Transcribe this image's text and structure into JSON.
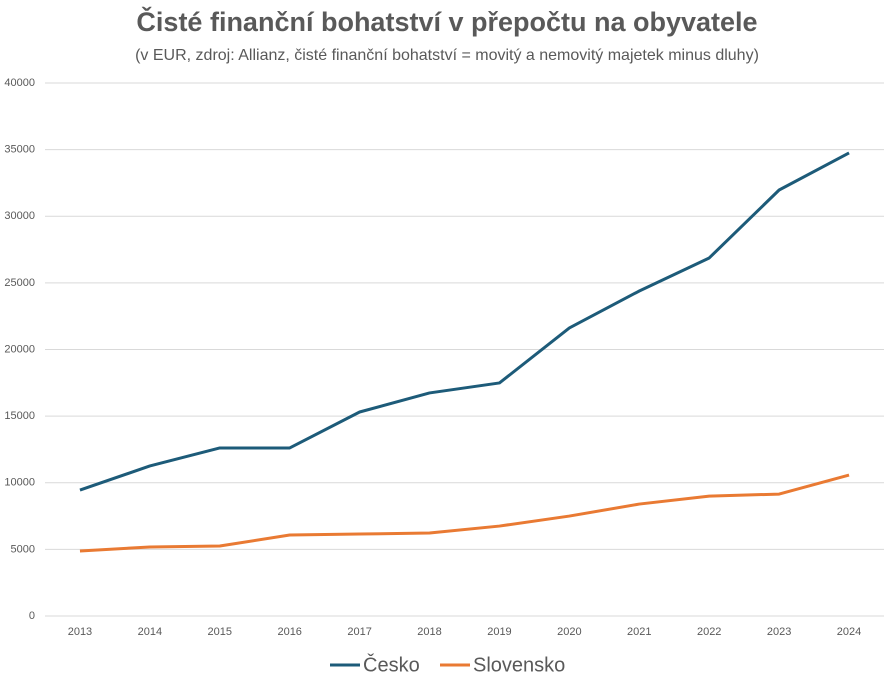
{
  "chart_data": {
    "type": "line",
    "title": "Čisté finanční bohatství v přepočtu na obyvatele",
    "subtitle": "(v EUR, zdroj: Allianz, čisté finanční bohatství = movitý a nemovitý majetek minus dluhy)",
    "categories": [
      "2013",
      "2014",
      "2015",
      "2016",
      "2017",
      "2018",
      "2019",
      "2020",
      "2021",
      "2022",
      "2023",
      "2024"
    ],
    "series": [
      {
        "name": "Česko",
        "color": "#1d5b79",
        "values": [
          9450,
          11260,
          12610,
          12610,
          15310,
          16740,
          17490,
          21620,
          24390,
          26870,
          31970,
          34750
        ]
      },
      {
        "name": "Slovensko",
        "color": "#e97a33",
        "values": [
          4880,
          5180,
          5250,
          6080,
          6150,
          6230,
          6750,
          7500,
          8400,
          9000,
          9150,
          10580
        ]
      }
    ],
    "ylim": [
      0,
      40000
    ],
    "yticks": [
      0,
      5000,
      10000,
      15000,
      20000,
      25000,
      30000,
      35000,
      40000
    ],
    "grid": true,
    "legend": "bottom"
  }
}
